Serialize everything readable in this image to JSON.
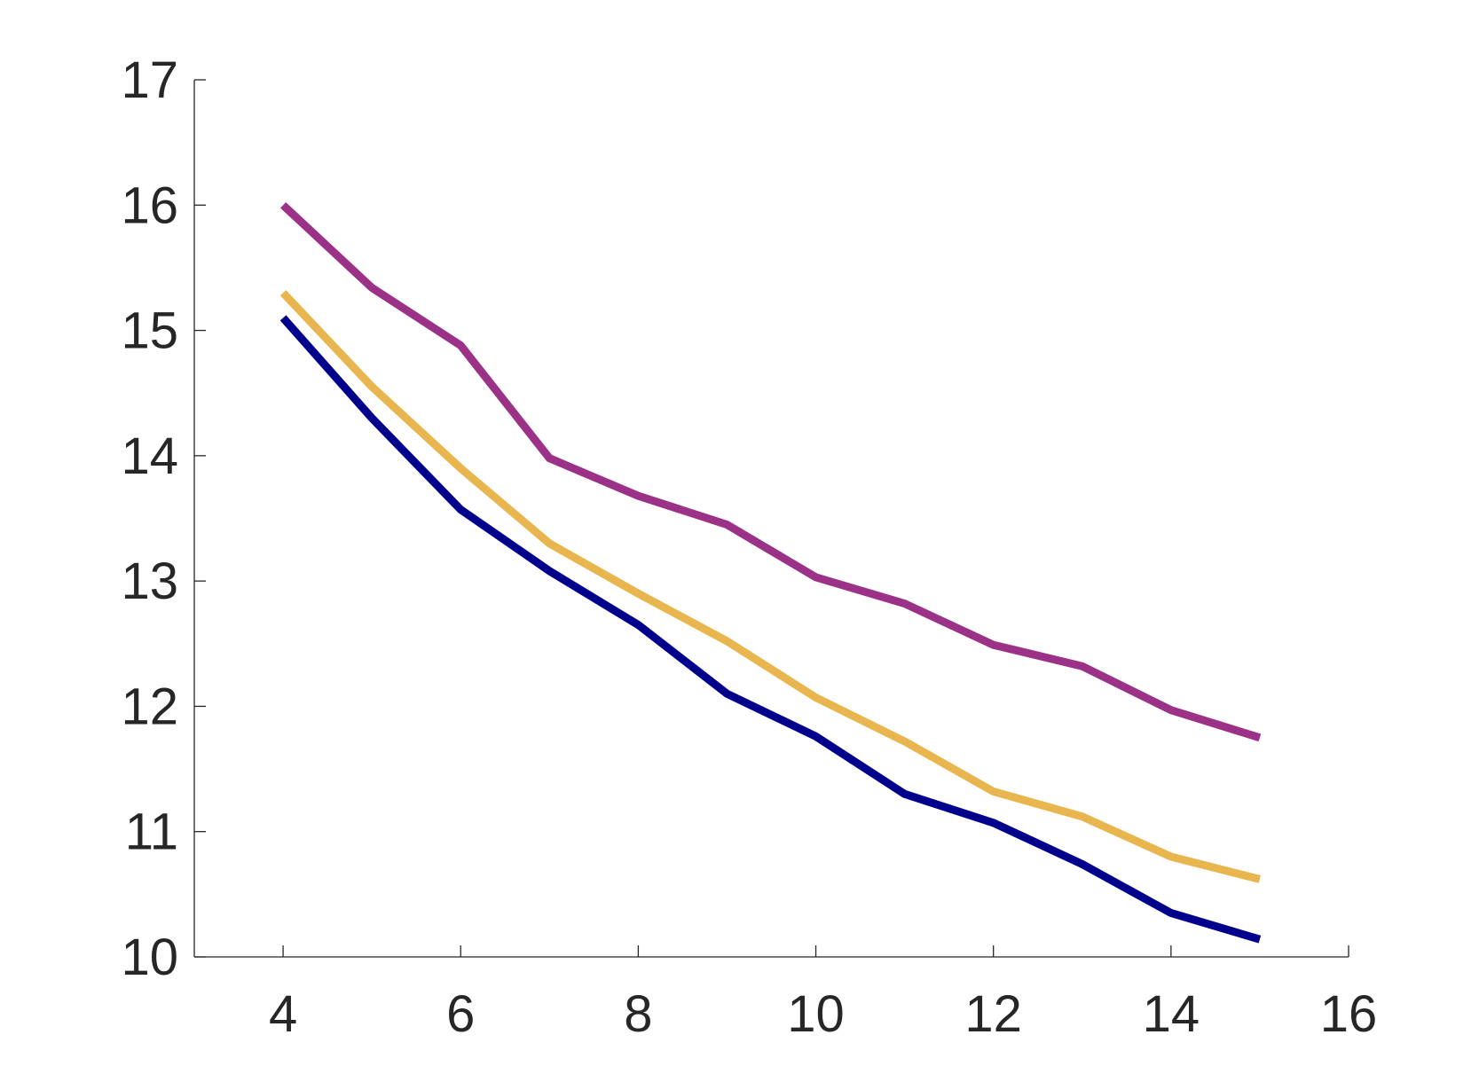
{
  "chart_data": {
    "type": "line",
    "title": "",
    "xlabel": "",
    "ylabel": "",
    "xlim": [
      3,
      16
    ],
    "ylim": [
      10,
      17
    ],
    "xticks": [
      4,
      6,
      8,
      10,
      12,
      14,
      16
    ],
    "yticks": [
      10,
      11,
      12,
      13,
      14,
      15,
      16,
      17
    ],
    "x": [
      4,
      5,
      6,
      7,
      8,
      9,
      10,
      11,
      12,
      13,
      14,
      15
    ],
    "series": [
      {
        "color": "#9b3288",
        "values": [
          16.0,
          15.34,
          14.88,
          13.98,
          13.68,
          13.45,
          13.03,
          12.82,
          12.49,
          12.32,
          11.97,
          11.75
        ]
      },
      {
        "color": "#e8b54e",
        "values": [
          15.3,
          14.55,
          13.9,
          13.3,
          12.9,
          12.52,
          12.07,
          11.72,
          11.32,
          11.12,
          10.8,
          10.62
        ]
      },
      {
        "color": "#00008c",
        "values": [
          15.1,
          14.3,
          13.57,
          13.08,
          12.65,
          12.1,
          11.76,
          11.3,
          11.07,
          10.74,
          10.35,
          10.14
        ]
      }
    ],
    "grid": false,
    "legend": "none"
  }
}
